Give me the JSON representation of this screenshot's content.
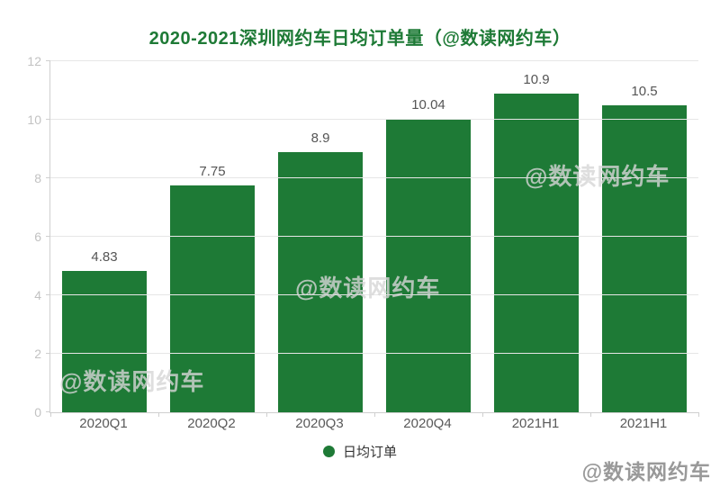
{
  "title": "2020-2021深圳网约车日均订单量（@数读网约车）",
  "chart_data": {
    "type": "bar",
    "categories": [
      "2020Q1",
      "2020Q2",
      "2020Q3",
      "2020Q4",
      "2021H1",
      "2021H1"
    ],
    "values": [
      4.83,
      7.75,
      8.9,
      10.04,
      10.9,
      10.5
    ],
    "value_labels": [
      "4.83",
      "7.75",
      "8.9",
      "10.04",
      "10.9",
      "10.5"
    ],
    "series_name": "日均订单",
    "ylim": [
      0,
      12
    ],
    "yticks": [
      0,
      2,
      4,
      6,
      8,
      10,
      12
    ],
    "grid": true,
    "legend_position": "bottom",
    "bar_color": "#1e7a36"
  },
  "legend": {
    "label": "日均订单"
  },
  "watermark": {
    "text": "@数读网约车"
  },
  "footer": {
    "credit": "@数读网约车"
  },
  "colors": {
    "title": "#1e7a36",
    "bar": "#1e7a36",
    "grid": "#e6e6e6",
    "axis_line": "#cfcfcf",
    "ytick_label": "#c2c2c2",
    "xtick_label": "#595959",
    "value_label": "#555555",
    "watermark": "#d6d6d6",
    "credit": "#999999"
  }
}
